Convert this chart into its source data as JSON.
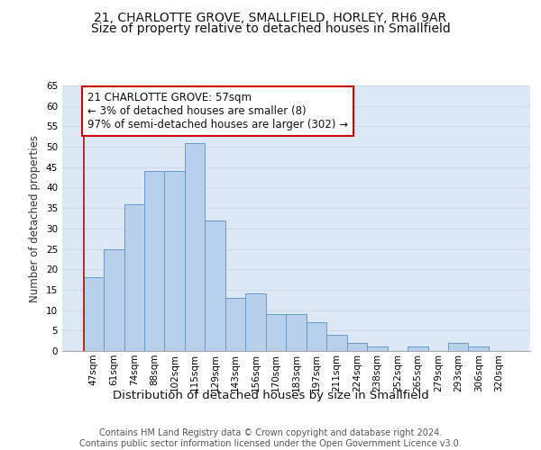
{
  "title1": "21, CHARLOTTE GROVE, SMALLFIELD, HORLEY, RH6 9AR",
  "title2": "Size of property relative to detached houses in Smallfield",
  "xlabel": "Distribution of detached houses by size in Smallfield",
  "ylabel": "Number of detached properties",
  "bar_labels": [
    "47sqm",
    "61sqm",
    "74sqm",
    "88sqm",
    "102sqm",
    "115sqm",
    "129sqm",
    "143sqm",
    "156sqm",
    "170sqm",
    "183sqm",
    "197sqm",
    "211sqm",
    "224sqm",
    "238sqm",
    "252sqm",
    "265sqm",
    "279sqm",
    "293sqm",
    "306sqm",
    "320sqm"
  ],
  "bar_values": [
    18,
    25,
    36,
    44,
    44,
    51,
    32,
    13,
    14,
    9,
    9,
    7,
    4,
    2,
    1,
    0,
    1,
    0,
    2,
    1,
    0
  ],
  "bar_color": "#b8d0ea",
  "bar_edge_color": "#6699cc",
  "grid_color": "#ccdaeb",
  "background_color": "#dce8f5",
  "annotation_box_text": "21 CHARLOTTE GROVE: 57sqm\n← 3% of detached houses are smaller (8)\n97% of semi-detached houses are larger (302) →",
  "marker_line_color": "#cc0000",
  "ylim": [
    0,
    65
  ],
  "yticks": [
    0,
    5,
    10,
    15,
    20,
    25,
    30,
    35,
    40,
    45,
    50,
    55,
    60,
    65
  ],
  "footer_text": "Contains HM Land Registry data © Crown copyright and database right 2024.\nContains public sector information licensed under the Open Government Licence v3.0.",
  "title1_fontsize": 10,
  "title2_fontsize": 10,
  "xlabel_fontsize": 9.5,
  "ylabel_fontsize": 8.5,
  "tick_fontsize": 7.5,
  "annotation_fontsize": 8.5,
  "footer_fontsize": 7
}
